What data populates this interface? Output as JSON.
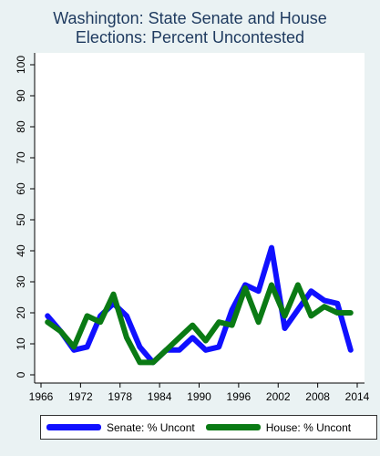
{
  "title_lines": [
    "Washington: State Senate and House",
    "Elections: Percent Uncontested"
  ],
  "colors": {
    "senate": "#1010ff",
    "house": "#0a7a14",
    "background": "#eaf2f3",
    "plot_background": "#ffffff"
  },
  "chart_data": {
    "type": "line",
    "title": "Washington: State Senate and House Elections: Percent Uncontested",
    "xlabel": "",
    "ylabel": "",
    "xlim": [
      1966,
      2014
    ],
    "ylim": [
      0,
      100
    ],
    "x_ticks": [
      1966,
      1972,
      1978,
      1984,
      1990,
      1996,
      2002,
      2008,
      2014
    ],
    "y_ticks": [
      0,
      10,
      20,
      30,
      40,
      50,
      60,
      70,
      80,
      90,
      100
    ],
    "grid": false,
    "legend_position": "bottom",
    "series": [
      {
        "name": "Senate: % Uncont",
        "color": "#1010ff",
        "x": [
          1966,
          1968,
          1970,
          1972,
          1974,
          1976,
          1978,
          1980,
          1982,
          1984,
          1986,
          1988,
          1990,
          1992,
          1994,
          1996,
          1998,
          2000,
          2002,
          2004,
          2006,
          2008,
          2010,
          2012,
          2014
        ],
        "y": [
          19,
          14,
          8,
          9,
          19,
          23,
          19,
          9,
          4,
          8,
          8,
          12,
          8,
          9,
          21,
          29,
          27,
          41,
          15,
          21,
          27,
          24,
          23,
          8,
          null
        ]
      },
      {
        "name": "House: % Uncont",
        "color": "#0a7a14",
        "x": [
          1966,
          1968,
          1970,
          1972,
          1974,
          1976,
          1978,
          1980,
          1982,
          1984,
          1986,
          1988,
          1990,
          1992,
          1994,
          1996,
          1998,
          2000,
          2002,
          2004,
          2006,
          2008,
          2010,
          2012,
          2014
        ],
        "y": [
          17,
          14,
          9,
          19,
          17,
          26,
          12,
          4,
          4,
          8,
          12,
          16,
          11,
          17,
          16,
          28,
          17,
          29,
          19,
          29,
          19,
          22,
          20,
          20,
          null
        ]
      }
    ]
  }
}
